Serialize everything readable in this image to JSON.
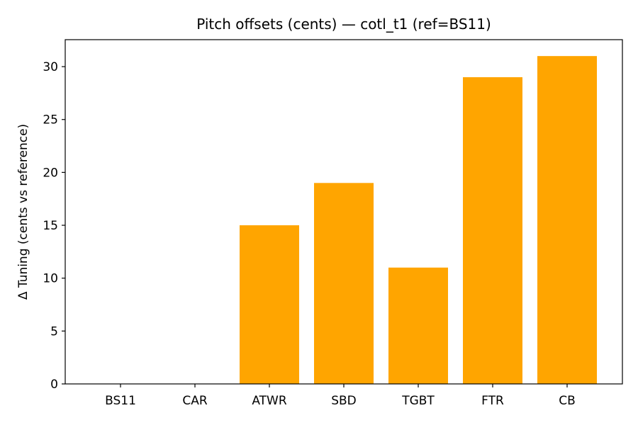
{
  "chart_data": {
    "type": "bar",
    "title": "Pitch offsets (cents) — cotl_t1 (ref=BS11)",
    "xlabel": "",
    "ylabel": "Δ Tuning (cents vs reference)",
    "categories": [
      "BS11",
      "CAR",
      "ATWR",
      "SBD",
      "TGBT",
      "FTR",
      "CB"
    ],
    "values": [
      0,
      0,
      15,
      19,
      11,
      29,
      31
    ],
    "ylim": [
      0,
      32.55
    ],
    "yticks": [
      0,
      5,
      10,
      15,
      20,
      25,
      30
    ],
    "grid": false,
    "legend": null,
    "bar_color": "#ffa500"
  },
  "colors": {
    "bar": "#ffa500",
    "axis": "#000000",
    "background": "#ffffff"
  }
}
